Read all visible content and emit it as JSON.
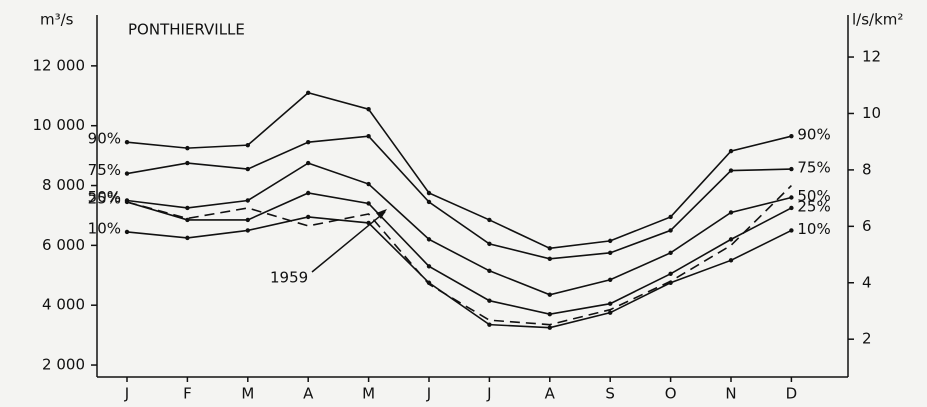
{
  "chart_data": {
    "type": "line",
    "title": "PONTHIERVILLE",
    "y_label": "m³/s",
    "y2_label": "l/s/km²",
    "annotation": "1959",
    "categories": [
      "J",
      "F",
      "M",
      "A",
      "M",
      "J",
      "J",
      "A",
      "S",
      "O",
      "N",
      "D"
    ],
    "series": [
      {
        "name": "90%",
        "color": "#111",
        "values": [
          9450,
          9250,
          9350,
          11100,
          10550,
          7750,
          6850,
          5900,
          6150,
          6950,
          9150,
          9650
        ]
      },
      {
        "name": "75%",
        "color": "#111",
        "values": [
          8400,
          8750,
          8550,
          9450,
          9650,
          7450,
          6050,
          5550,
          5750,
          6500,
          8500,
          8550
        ]
      },
      {
        "name": "50%",
        "color": "#111",
        "values": [
          7500,
          7250,
          7500,
          8750,
          8050,
          6200,
          5150,
          4350,
          4850,
          5750,
          7100,
          7600
        ]
      },
      {
        "name": "25%",
        "color": "#111",
        "values": [
          7450,
          6850,
          6850,
          7750,
          7400,
          5300,
          4150,
          3700,
          4050,
          5050,
          6200,
          7250
        ]
      },
      {
        "name": "10%",
        "color": "#111",
        "values": [
          6450,
          6250,
          6500,
          6950,
          6750,
          4750,
          3350,
          3250,
          3750,
          4750,
          5500,
          6500
        ]
      },
      {
        "name": "1959",
        "color": "#111",
        "dashed": true,
        "values": [
          7450,
          6900,
          7250,
          6650,
          7050,
          4700,
          3500,
          3350,
          3850,
          4800,
          6000,
          8000
        ]
      }
    ],
    "ylim": [
      1600,
      13700
    ],
    "yticks": [
      {
        "value": 2000,
        "label": "2 000"
      },
      {
        "value": 4000,
        "label": "4 000"
      },
      {
        "value": 6000,
        "label": "6 000"
      },
      {
        "value": 8000,
        "label": "8 000"
      },
      {
        "value": 10000,
        "label": "10 000"
      },
      {
        "value": 12000,
        "label": "12 000"
      }
    ],
    "y2lim": [
      0.66,
      13.49
    ],
    "y2ticks": [
      2,
      4,
      6,
      8,
      10,
      12
    ]
  }
}
